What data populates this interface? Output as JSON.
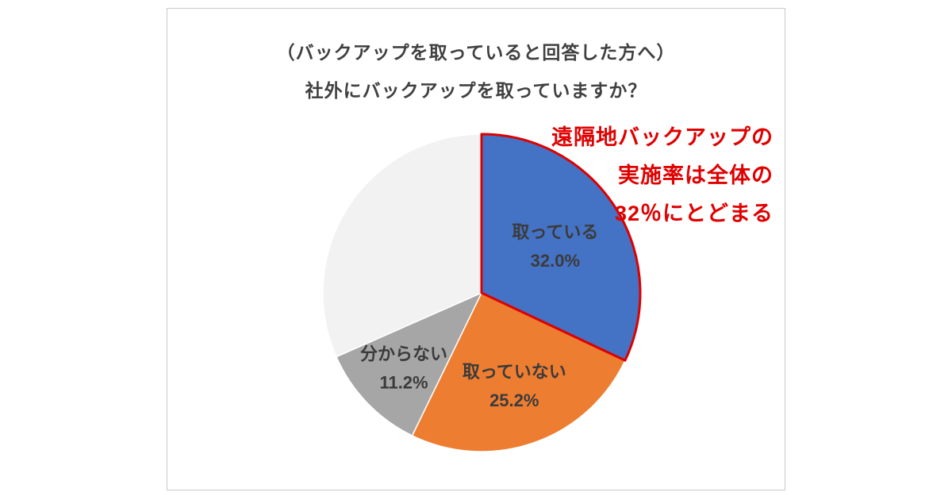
{
  "panel": {
    "title_line1": "（バックアップを取っていると回答した方へ）",
    "title_line2": "社外にバックアップを取っていますか？"
  },
  "annotation": {
    "line1": "遠隔地バックアップの",
    "line2": "実施率は全体の",
    "line3": "32％にとどまる",
    "color": "#e00000"
  },
  "chart_data": {
    "type": "pie",
    "title": "社外にバックアップを取っていますか？（バックアップを取っていると回答した方へ）",
    "legend": "none",
    "start_angle_deg": 0,
    "direction": "clockwise",
    "center": [
      396,
      358
    ],
    "radius": 200,
    "slices": [
      {
        "label": "取っている",
        "value": 32.0,
        "display": "32.0%",
        "color": "#4472c4",
        "label_r": 0.55,
        "outlined": true,
        "outline_color": "#dd0000"
      },
      {
        "label": "取っていない",
        "value": 25.2,
        "display": "25.2%",
        "color": "#ed7d31",
        "label_r": 0.62
      },
      {
        "label": "分からない",
        "value": 11.2,
        "display": "11.2%",
        "color": "#a6a6a6",
        "label_r": 0.68
      },
      {
        "label": "",
        "value": 31.6,
        "display": "",
        "color": "#f2f2f2",
        "label_r": 0
      }
    ]
  }
}
